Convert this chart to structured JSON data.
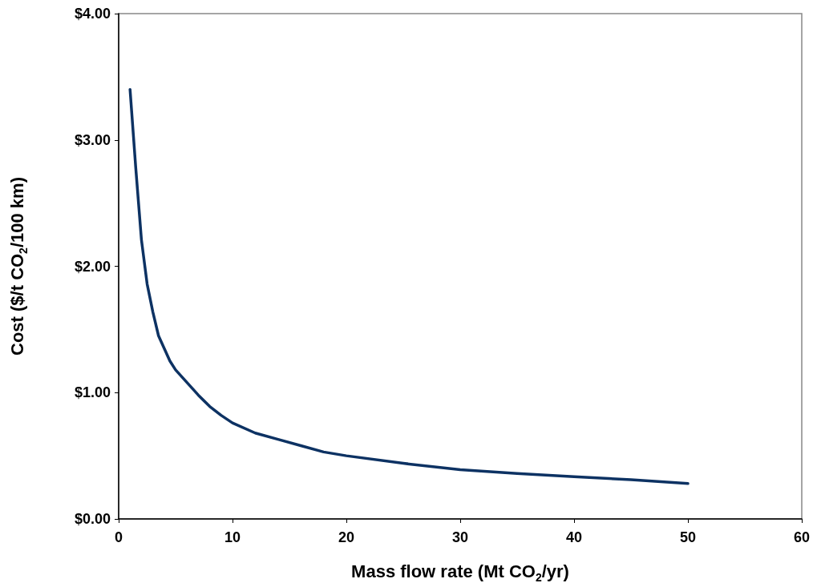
{
  "chart_data": {
    "type": "line",
    "xlabel": "Mass flow rate (Mt CO$_{2}$/yr)",
    "ylabel": "Cost ($/t CO$_{2}$/100 km)",
    "xlim": [
      0,
      60
    ],
    "xticks": [
      0,
      10,
      20,
      30,
      40,
      50,
      60
    ],
    "ylim": [
      0,
      4
    ],
    "yticks": [
      {
        "value": 0,
        "label": "$0.00"
      },
      {
        "value": 1,
        "label": "$1.00"
      },
      {
        "value": 2,
        "label": "$2.00"
      },
      {
        "value": 3,
        "label": "$3.00"
      },
      {
        "value": 4,
        "label": "$4.00"
      }
    ],
    "grid": false,
    "marker": "none",
    "line_style": "solid",
    "series": [
      {
        "color": "#0d3263",
        "x": [
          1,
          1.5,
          2,
          2.5,
          3,
          3.5,
          4,
          4.5,
          5,
          6,
          7,
          8,
          9,
          10,
          12,
          14,
          16,
          18,
          20,
          25,
          30,
          35,
          40,
          45,
          50
        ],
        "values": [
          3.4,
          2.78,
          2.21,
          1.86,
          1.64,
          1.45,
          1.35,
          1.25,
          1.18,
          1.08,
          0.98,
          0.89,
          0.82,
          0.76,
          0.68,
          0.63,
          0.58,
          0.53,
          0.5,
          0.44,
          0.39,
          0.36,
          0.335,
          0.31,
          0.28
        ]
      }
    ]
  }
}
